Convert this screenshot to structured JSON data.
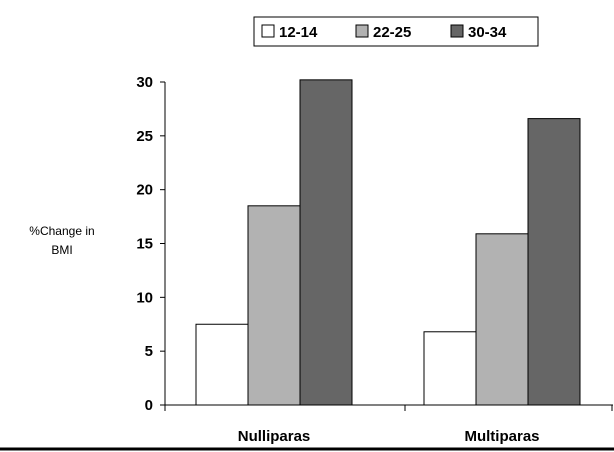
{
  "chart_data": {
    "type": "bar",
    "categories": [
      "Nulliparas",
      "Multiparas"
    ],
    "series": [
      {
        "name": "12-14",
        "values": [
          7.5,
          6.8
        ],
        "color": "#ffffff"
      },
      {
        "name": "22-25",
        "values": [
          18.5,
          15.9
        ],
        "color": "#b2b2b2"
      },
      {
        "name": "30-34",
        "values": [
          30.2,
          26.6
        ],
        "color": "#666666"
      }
    ],
    "title": "",
    "xlabel": "",
    "ylabel_lines": [
      "%Change in",
      "BMI"
    ],
    "ylim": [
      0,
      30
    ],
    "yticks": [
      "0",
      "5",
      "10",
      "15",
      "20",
      "25",
      "30"
    ],
    "grid": false,
    "legend_position": "top"
  }
}
